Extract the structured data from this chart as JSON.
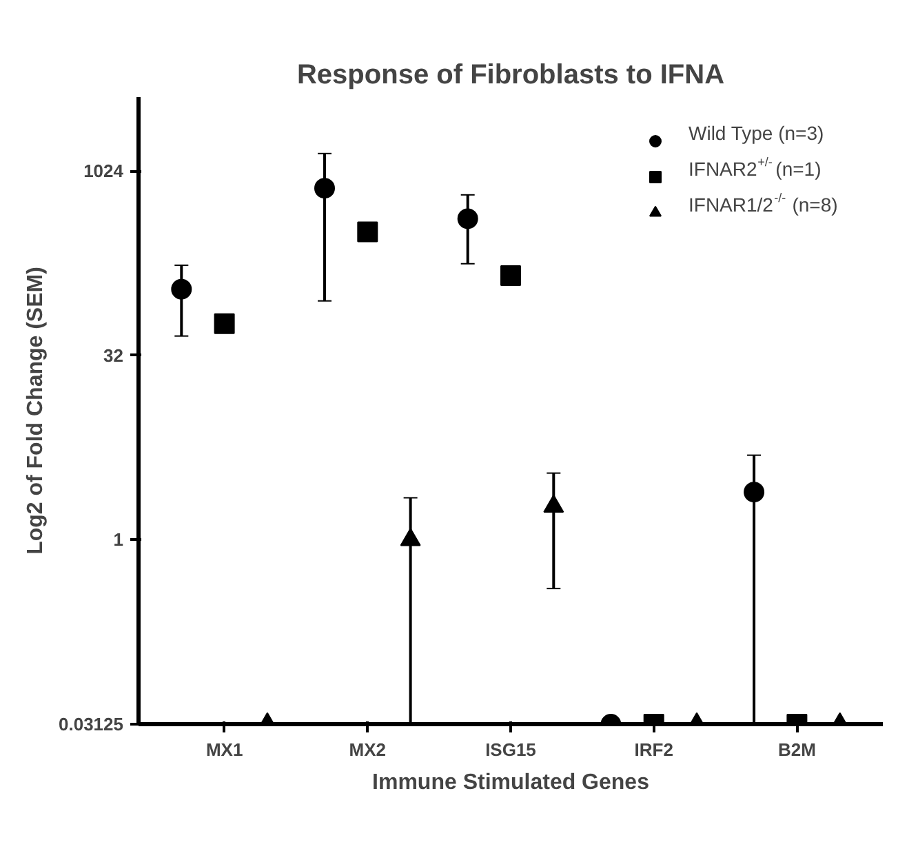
{
  "chart_data": {
    "type": "scatter",
    "title": "Response of Fibroblasts to IFNA",
    "xlabel": "Immune Stimulated Genes",
    "ylabel": "Log2 of Fold Change (SEM)",
    "categories": [
      "MX1",
      "MX2",
      "ISG15",
      "IRF2",
      "B2M"
    ],
    "series": [
      {
        "name": "Wild Type (n=3)",
        "color": "#000000",
        "marker": "circle",
        "values": [
          111,
          740,
          417,
          0.03125,
          2.45
        ],
        "errors": [
          [
            46,
            174
          ],
          [
            89,
            1420
          ],
          [
            179,
            653
          ],
          null,
          [
            0.03125,
            4.9
          ]
        ]
      },
      {
        "name": "IFNAR2$^{+/-}$ (n=1)",
        "color": "#000000",
        "marker": "square",
        "values": [
          58,
          326,
          143,
          0.03125,
          0.03125
        ]
      },
      {
        "name": "IFNAR1/2$^{-/-}$ (n=8)",
        "color": "#000000",
        "marker": "triangle",
        "values": [
          0.03125,
          1,
          1.87,
          0.03125,
          0.03125
        ],
        "errors": [
          null,
          [
            0.03125,
            2.2
          ],
          [
            0.4,
            3.5
          ],
          null,
          null
        ]
      }
    ],
    "log": "y",
    "ylim": [
      0.03125,
      4096
    ],
    "yticks": [
      0.03125,
      1,
      32,
      1024
    ],
    "grid": false,
    "legend": "top right"
  }
}
